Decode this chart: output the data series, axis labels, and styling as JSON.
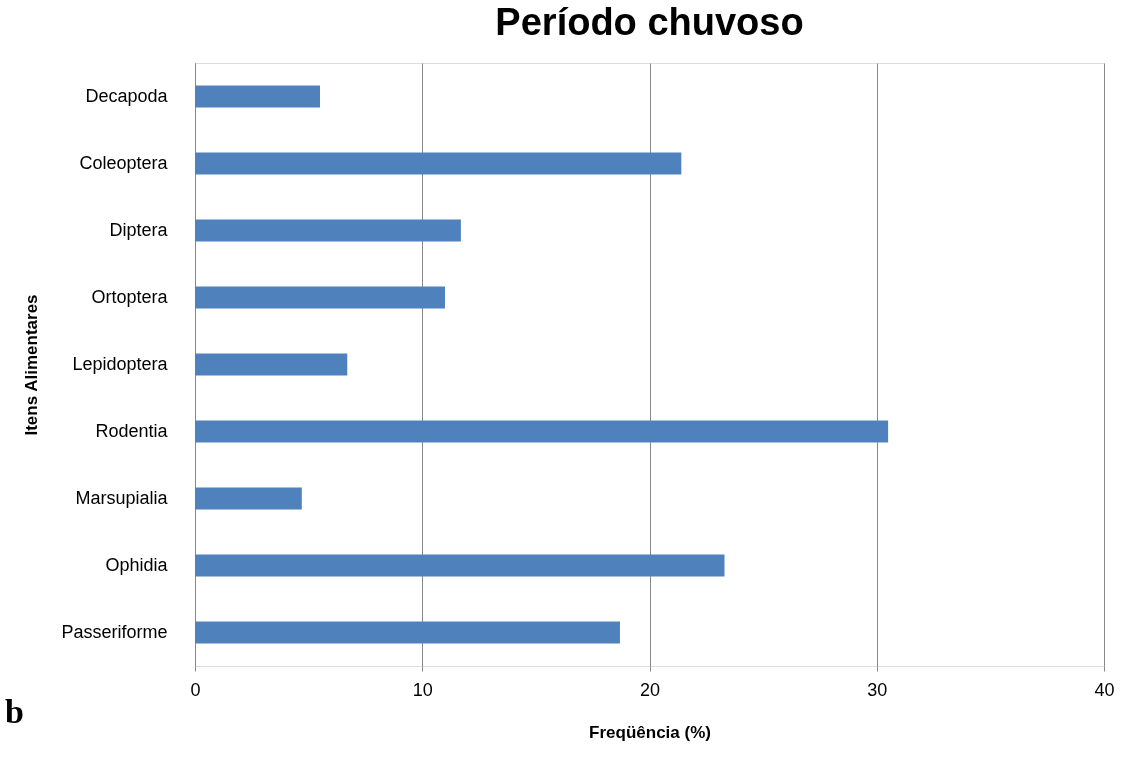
{
  "chart_data": {
    "type": "bar",
    "orientation": "horizontal",
    "title": "Período chuvoso",
    "xlabel": "Freqüência (%)",
    "ylabel": "Itens Alimentares",
    "categories": [
      "Decapoda",
      "Coleoptera",
      "Diptera",
      "Ortoptera",
      "Lepidoptera",
      "Rodentia",
      "Marsupialia",
      "Ophidia",
      "Passeriforme"
    ],
    "values": [
      5.5,
      21.4,
      11.7,
      11.0,
      6.7,
      30.5,
      4.7,
      23.3,
      18.7
    ],
    "color": "#4f81bd",
    "xlim": [
      0,
      40
    ],
    "xticks": [
      0,
      10,
      20,
      30,
      40
    ],
    "grid": "x",
    "annotations": [
      "b"
    ]
  }
}
